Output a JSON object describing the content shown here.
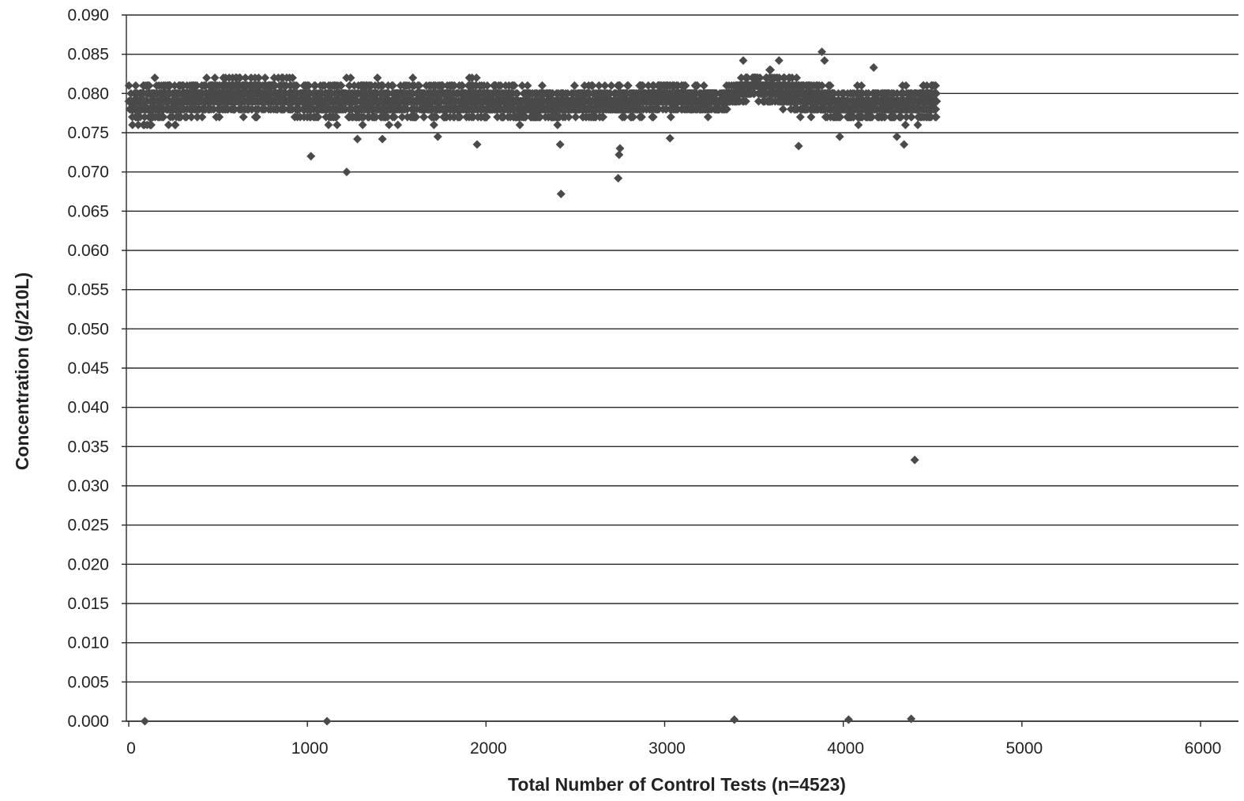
{
  "chart_data": {
    "type": "scatter",
    "title": "",
    "xlabel": "Total Number of Control Tests (n=4523)",
    "ylabel": "Concentration (g/210L)",
    "xlim": [
      0,
      6000
    ],
    "ylim": [
      0,
      0.09
    ],
    "x_ticks": [
      "0",
      "1000",
      "2000",
      "3000",
      "4000",
      "5000",
      "6000"
    ],
    "y_ticks": [
      "0.000",
      "0.005",
      "0.010",
      "0.015",
      "0.020",
      "0.025",
      "0.030",
      "0.035",
      "0.040",
      "0.045",
      "0.050",
      "0.055",
      "0.060",
      "0.065",
      "0.070",
      "0.075",
      "0.080",
      "0.085",
      "0.090"
    ],
    "grid": true,
    "legend": "none",
    "marker": "diamond",
    "marker_color": "#4a4a4a",
    "n_points": 4523,
    "band_profile": [
      {
        "x": 0,
        "low": 0.075,
        "high": 0.082
      },
      {
        "x": 300,
        "low": 0.076,
        "high": 0.082
      },
      {
        "x": 600,
        "low": 0.077,
        "high": 0.083
      },
      {
        "x": 1000,
        "low": 0.076,
        "high": 0.082
      },
      {
        "x": 1500,
        "low": 0.076,
        "high": 0.082
      },
      {
        "x": 2000,
        "low": 0.076,
        "high": 0.082
      },
      {
        "x": 2500,
        "low": 0.076,
        "high": 0.081
      },
      {
        "x": 3000,
        "low": 0.077,
        "high": 0.082
      },
      {
        "x": 3300,
        "low": 0.077,
        "high": 0.081
      },
      {
        "x": 3500,
        "low": 0.079,
        "high": 0.083
      },
      {
        "x": 3700,
        "low": 0.077,
        "high": 0.083
      },
      {
        "x": 4000,
        "low": 0.076,
        "high": 0.081
      },
      {
        "x": 4300,
        "low": 0.076,
        "high": 0.081
      },
      {
        "x": 4523,
        "low": 0.076,
        "high": 0.082
      }
    ],
    "notable_points": [
      {
        "x": 1020,
        "y": 0.072
      },
      {
        "x": 1220,
        "y": 0.07
      },
      {
        "x": 2420,
        "y": 0.0672
      },
      {
        "x": 2415,
        "y": 0.0735
      },
      {
        "x": 2740,
        "y": 0.0692
      },
      {
        "x": 2745,
        "y": 0.0722
      },
      {
        "x": 2750,
        "y": 0.073
      },
      {
        "x": 1950,
        "y": 0.0735
      },
      {
        "x": 1730,
        "y": 0.0745
      },
      {
        "x": 1280,
        "y": 0.0742
      },
      {
        "x": 1420,
        "y": 0.0742
      },
      {
        "x": 3030,
        "y": 0.0743
      },
      {
        "x": 3750,
        "y": 0.0733
      },
      {
        "x": 3980,
        "y": 0.0745
      },
      {
        "x": 4340,
        "y": 0.0735
      },
      {
        "x": 4300,
        "y": 0.0745
      },
      {
        "x": 3880,
        "y": 0.0853
      },
      {
        "x": 3895,
        "y": 0.0842
      },
      {
        "x": 4170,
        "y": 0.0833
      },
      {
        "x": 3440,
        "y": 0.0842
      },
      {
        "x": 3640,
        "y": 0.0842
      },
      {
        "x": 4400,
        "y": 0.0333
      },
      {
        "x": 90,
        "y": 0.0
      },
      {
        "x": 1110,
        "y": 0.0
      },
      {
        "x": 3390,
        "y": 0.0002
      },
      {
        "x": 4030,
        "y": 0.0002
      },
      {
        "x": 4380,
        "y": 0.0003
      }
    ]
  }
}
